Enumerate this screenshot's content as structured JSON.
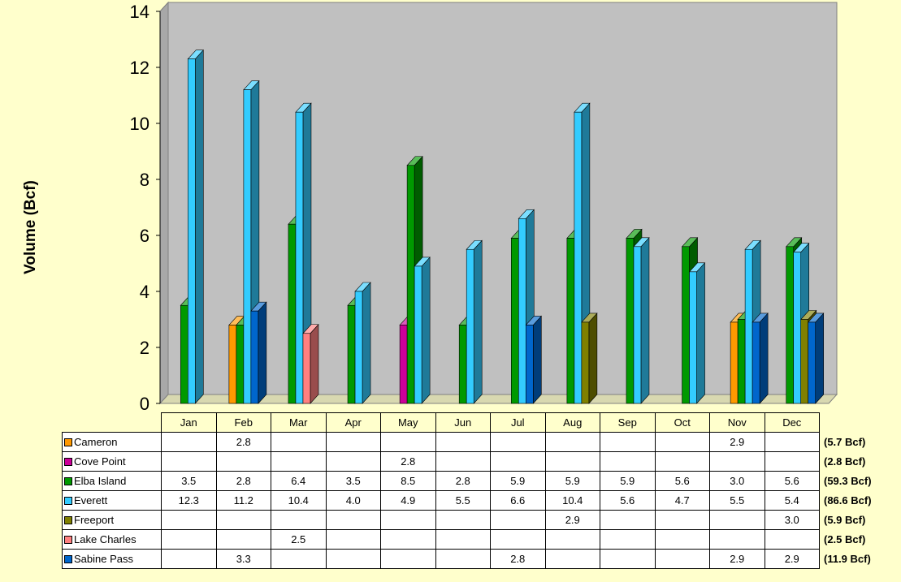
{
  "colors": {
    "Cameron": "#FF9900",
    "Cove Point": "#CC0099",
    "Elba Island": "#009900",
    "Everett": "#33CCFF",
    "Freeport": "#808000",
    "Lake Charles": "#FF8080",
    "Sabine Pass": "#0066CC",
    "plot_bg": "#C0C0C0",
    "page_bg": "#FFFFCC"
  },
  "chart_data": {
    "type": "bar",
    "ylabel": "Volume (Bcf)",
    "ylim": [
      0,
      14
    ],
    "yticks": [
      "0",
      "2",
      "4",
      "6",
      "8",
      "10",
      "12",
      "14"
    ],
    "categories": [
      "Jan",
      "Feb",
      "Mar",
      "Apr",
      "May",
      "Jun",
      "Jul",
      "Aug",
      "Sep",
      "Oct",
      "Nov",
      "Dec"
    ],
    "series": [
      {
        "name": "Cameron",
        "values": [
          null,
          2.8,
          null,
          null,
          null,
          null,
          null,
          null,
          null,
          null,
          2.9,
          null
        ],
        "labels": [
          "",
          "2.8",
          "",
          "",
          "",
          "",
          "",
          "",
          "",
          "",
          "2.9",
          ""
        ],
        "total": "(5.7 Bcf)"
      },
      {
        "name": "Cove Point",
        "values": [
          null,
          null,
          null,
          null,
          2.8,
          null,
          null,
          null,
          null,
          null,
          null,
          null
        ],
        "labels": [
          "",
          "",
          "",
          "",
          "2.8",
          "",
          "",
          "",
          "",
          "",
          "",
          ""
        ],
        "total": "(2.8 Bcf)"
      },
      {
        "name": "Elba Island",
        "values": [
          3.5,
          2.8,
          6.4,
          3.5,
          8.5,
          2.8,
          5.9,
          5.9,
          5.9,
          5.6,
          3.0,
          5.6
        ],
        "labels": [
          "3.5",
          "2.8",
          "6.4",
          "3.5",
          "8.5",
          "2.8",
          "5.9",
          "5.9",
          "5.9",
          "5.6",
          "3.0",
          "5.6"
        ],
        "total": "(59.3 Bcf)"
      },
      {
        "name": "Everett",
        "values": [
          12.3,
          11.2,
          10.4,
          4.0,
          4.9,
          5.5,
          6.6,
          10.4,
          5.6,
          4.7,
          5.5,
          5.4
        ],
        "labels": [
          "12.3",
          "11.2",
          "10.4",
          "4.0",
          "4.9",
          "5.5",
          "6.6",
          "10.4",
          "5.6",
          "4.7",
          "5.5",
          "5.4"
        ],
        "total": "(86.6 Bcf)"
      },
      {
        "name": "Freeport",
        "values": [
          null,
          null,
          null,
          null,
          null,
          null,
          null,
          2.9,
          null,
          null,
          null,
          3.0
        ],
        "labels": [
          "",
          "",
          "",
          "",
          "",
          "",
          "",
          "2.9",
          "",
          "",
          "",
          "3.0"
        ],
        "total": "(5.9 Bcf)"
      },
      {
        "name": "Lake Charles",
        "values": [
          null,
          null,
          2.5,
          null,
          null,
          null,
          null,
          null,
          null,
          null,
          null,
          null
        ],
        "labels": [
          "",
          "",
          "2.5",
          "",
          "",
          "",
          "",
          "",
          "",
          "",
          "",
          ""
        ],
        "total": "(2.5 Bcf)"
      },
      {
        "name": "Sabine Pass",
        "values": [
          null,
          3.3,
          null,
          null,
          null,
          null,
          2.8,
          null,
          null,
          null,
          2.9,
          2.9
        ],
        "labels": [
          "",
          "3.3",
          "",
          "",
          "",
          "",
          "2.8",
          "",
          "",
          "",
          "2.9",
          "2.9"
        ],
        "total": "(11.9 Bcf)"
      }
    ]
  }
}
